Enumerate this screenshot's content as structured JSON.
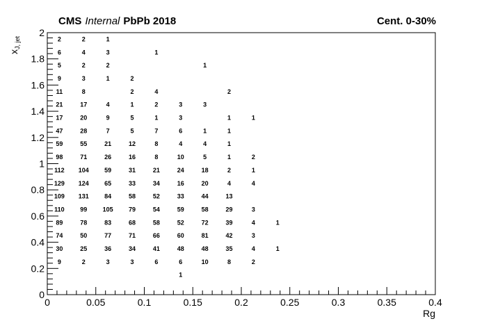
{
  "header": {
    "experiment": "CMS",
    "status": "Internal",
    "dataset": "PbPb 2018",
    "centrality": "Cent. 0-30%"
  },
  "chart_data": {
    "type": "table",
    "xlabel": "Rg",
    "ylabel": "x_{J, jet}",
    "ylabel_main": "x",
    "ylabel_sub": "J, jet",
    "xlim": [
      0,
      0.4
    ],
    "ylim": [
      0,
      2
    ],
    "x_ticks": [
      "0",
      "0.05",
      "0.1",
      "0.15",
      "0.2",
      "0.25",
      "0.3",
      "0.35",
      "0.4"
    ],
    "y_ticks": [
      "0",
      "0.2",
      "0.4",
      "0.6",
      "0.8",
      "1",
      "1.2",
      "1.4",
      "1.6",
      "1.8",
      "2"
    ],
    "grid": false,
    "cells": [
      {
        "x": 0.0125,
        "y": 1.95,
        "v": 2
      },
      {
        "x": 0.0375,
        "y": 1.95,
        "v": 2
      },
      {
        "x": 0.0625,
        "y": 1.95,
        "v": 1
      },
      {
        "x": 0.0125,
        "y": 1.85,
        "v": 6
      },
      {
        "x": 0.0375,
        "y": 1.85,
        "v": 4
      },
      {
        "x": 0.0625,
        "y": 1.85,
        "v": 3
      },
      {
        "x": 0.1125,
        "y": 1.85,
        "v": 1
      },
      {
        "x": 0.0125,
        "y": 1.75,
        "v": 5
      },
      {
        "x": 0.0375,
        "y": 1.75,
        "v": 2
      },
      {
        "x": 0.0625,
        "y": 1.75,
        "v": 2
      },
      {
        "x": 0.1625,
        "y": 1.75,
        "v": 1
      },
      {
        "x": 0.0125,
        "y": 1.65,
        "v": 9
      },
      {
        "x": 0.0375,
        "y": 1.65,
        "v": 3
      },
      {
        "x": 0.0625,
        "y": 1.65,
        "v": 1
      },
      {
        "x": 0.0875,
        "y": 1.65,
        "v": 2
      },
      {
        "x": 0.0125,
        "y": 1.55,
        "v": 11
      },
      {
        "x": 0.0375,
        "y": 1.55,
        "v": 8
      },
      {
        "x": 0.0875,
        "y": 1.55,
        "v": 2
      },
      {
        "x": 0.1125,
        "y": 1.55,
        "v": 4
      },
      {
        "x": 0.1875,
        "y": 1.55,
        "v": 2
      },
      {
        "x": 0.0125,
        "y": 1.45,
        "v": 21
      },
      {
        "x": 0.0375,
        "y": 1.45,
        "v": 17
      },
      {
        "x": 0.0625,
        "y": 1.45,
        "v": 4
      },
      {
        "x": 0.0875,
        "y": 1.45,
        "v": 1
      },
      {
        "x": 0.1125,
        "y": 1.45,
        "v": 2
      },
      {
        "x": 0.1375,
        "y": 1.45,
        "v": 3
      },
      {
        "x": 0.1625,
        "y": 1.45,
        "v": 3
      },
      {
        "x": 0.0125,
        "y": 1.35,
        "v": 17
      },
      {
        "x": 0.0375,
        "y": 1.35,
        "v": 20
      },
      {
        "x": 0.0625,
        "y": 1.35,
        "v": 9
      },
      {
        "x": 0.0875,
        "y": 1.35,
        "v": 5
      },
      {
        "x": 0.1125,
        "y": 1.35,
        "v": 1
      },
      {
        "x": 0.1375,
        "y": 1.35,
        "v": 3
      },
      {
        "x": 0.1875,
        "y": 1.35,
        "v": 1
      },
      {
        "x": 0.2125,
        "y": 1.35,
        "v": 1
      },
      {
        "x": 0.0125,
        "y": 1.25,
        "v": 47
      },
      {
        "x": 0.0375,
        "y": 1.25,
        "v": 28
      },
      {
        "x": 0.0625,
        "y": 1.25,
        "v": 7
      },
      {
        "x": 0.0875,
        "y": 1.25,
        "v": 5
      },
      {
        "x": 0.1125,
        "y": 1.25,
        "v": 7
      },
      {
        "x": 0.1375,
        "y": 1.25,
        "v": 6
      },
      {
        "x": 0.1625,
        "y": 1.25,
        "v": 1
      },
      {
        "x": 0.1875,
        "y": 1.25,
        "v": 1
      },
      {
        "x": 0.0125,
        "y": 1.15,
        "v": 59
      },
      {
        "x": 0.0375,
        "y": 1.15,
        "v": 55
      },
      {
        "x": 0.0625,
        "y": 1.15,
        "v": 21
      },
      {
        "x": 0.0875,
        "y": 1.15,
        "v": 12
      },
      {
        "x": 0.1125,
        "y": 1.15,
        "v": 8
      },
      {
        "x": 0.1375,
        "y": 1.15,
        "v": 4
      },
      {
        "x": 0.1625,
        "y": 1.15,
        "v": 4
      },
      {
        "x": 0.1875,
        "y": 1.15,
        "v": 1
      },
      {
        "x": 0.0125,
        "y": 1.05,
        "v": 98
      },
      {
        "x": 0.0375,
        "y": 1.05,
        "v": 71
      },
      {
        "x": 0.0625,
        "y": 1.05,
        "v": 26
      },
      {
        "x": 0.0875,
        "y": 1.05,
        "v": 16
      },
      {
        "x": 0.1125,
        "y": 1.05,
        "v": 8
      },
      {
        "x": 0.1375,
        "y": 1.05,
        "v": 10
      },
      {
        "x": 0.1625,
        "y": 1.05,
        "v": 5
      },
      {
        "x": 0.1875,
        "y": 1.05,
        "v": 1
      },
      {
        "x": 0.2125,
        "y": 1.05,
        "v": 2
      },
      {
        "x": 0.0125,
        "y": 0.95,
        "v": 112
      },
      {
        "x": 0.0375,
        "y": 0.95,
        "v": 104
      },
      {
        "x": 0.0625,
        "y": 0.95,
        "v": 59
      },
      {
        "x": 0.0875,
        "y": 0.95,
        "v": 31
      },
      {
        "x": 0.1125,
        "y": 0.95,
        "v": 21
      },
      {
        "x": 0.1375,
        "y": 0.95,
        "v": 24
      },
      {
        "x": 0.1625,
        "y": 0.95,
        "v": 18
      },
      {
        "x": 0.1875,
        "y": 0.95,
        "v": 2
      },
      {
        "x": 0.2125,
        "y": 0.95,
        "v": 1
      },
      {
        "x": 0.0125,
        "y": 0.85,
        "v": 129
      },
      {
        "x": 0.0375,
        "y": 0.85,
        "v": 124
      },
      {
        "x": 0.0625,
        "y": 0.85,
        "v": 65
      },
      {
        "x": 0.0875,
        "y": 0.85,
        "v": 33
      },
      {
        "x": 0.1125,
        "y": 0.85,
        "v": 34
      },
      {
        "x": 0.1375,
        "y": 0.85,
        "v": 16
      },
      {
        "x": 0.1625,
        "y": 0.85,
        "v": 20
      },
      {
        "x": 0.1875,
        "y": 0.85,
        "v": 4
      },
      {
        "x": 0.2125,
        "y": 0.85,
        "v": 4
      },
      {
        "x": 0.0125,
        "y": 0.75,
        "v": 109
      },
      {
        "x": 0.0375,
        "y": 0.75,
        "v": 131
      },
      {
        "x": 0.0625,
        "y": 0.75,
        "v": 84
      },
      {
        "x": 0.0875,
        "y": 0.75,
        "v": 58
      },
      {
        "x": 0.1125,
        "y": 0.75,
        "v": 52
      },
      {
        "x": 0.1375,
        "y": 0.75,
        "v": 33
      },
      {
        "x": 0.1625,
        "y": 0.75,
        "v": 44
      },
      {
        "x": 0.1875,
        "y": 0.75,
        "v": 13
      },
      {
        "x": 0.0125,
        "y": 0.65,
        "v": 110
      },
      {
        "x": 0.0375,
        "y": 0.65,
        "v": 99
      },
      {
        "x": 0.0625,
        "y": 0.65,
        "v": 105
      },
      {
        "x": 0.0875,
        "y": 0.65,
        "v": 79
      },
      {
        "x": 0.1125,
        "y": 0.65,
        "v": 54
      },
      {
        "x": 0.1375,
        "y": 0.65,
        "v": 59
      },
      {
        "x": 0.1625,
        "y": 0.65,
        "v": 58
      },
      {
        "x": 0.1875,
        "y": 0.65,
        "v": 29
      },
      {
        "x": 0.2125,
        "y": 0.65,
        "v": 3
      },
      {
        "x": 0.0125,
        "y": 0.55,
        "v": 89
      },
      {
        "x": 0.0375,
        "y": 0.55,
        "v": 78
      },
      {
        "x": 0.0625,
        "y": 0.55,
        "v": 83
      },
      {
        "x": 0.0875,
        "y": 0.55,
        "v": 68
      },
      {
        "x": 0.1125,
        "y": 0.55,
        "v": 58
      },
      {
        "x": 0.1375,
        "y": 0.55,
        "v": 52
      },
      {
        "x": 0.1625,
        "y": 0.55,
        "v": 72
      },
      {
        "x": 0.1875,
        "y": 0.55,
        "v": 39
      },
      {
        "x": 0.2125,
        "y": 0.55,
        "v": 4
      },
      {
        "x": 0.2375,
        "y": 0.55,
        "v": 1
      },
      {
        "x": 0.0125,
        "y": 0.45,
        "v": 74
      },
      {
        "x": 0.0375,
        "y": 0.45,
        "v": 50
      },
      {
        "x": 0.0625,
        "y": 0.45,
        "v": 77
      },
      {
        "x": 0.0875,
        "y": 0.45,
        "v": 71
      },
      {
        "x": 0.1125,
        "y": 0.45,
        "v": 66
      },
      {
        "x": 0.1375,
        "y": 0.45,
        "v": 60
      },
      {
        "x": 0.1625,
        "y": 0.45,
        "v": 81
      },
      {
        "x": 0.1875,
        "y": 0.45,
        "v": 42
      },
      {
        "x": 0.2125,
        "y": 0.45,
        "v": 3
      },
      {
        "x": 0.0125,
        "y": 0.35,
        "v": 30
      },
      {
        "x": 0.0375,
        "y": 0.35,
        "v": 25
      },
      {
        "x": 0.0625,
        "y": 0.35,
        "v": 36
      },
      {
        "x": 0.0875,
        "y": 0.35,
        "v": 34
      },
      {
        "x": 0.1125,
        "y": 0.35,
        "v": 41
      },
      {
        "x": 0.1375,
        "y": 0.35,
        "v": 48
      },
      {
        "x": 0.1625,
        "y": 0.35,
        "v": 48
      },
      {
        "x": 0.1875,
        "y": 0.35,
        "v": 35
      },
      {
        "x": 0.2125,
        "y": 0.35,
        "v": 4
      },
      {
        "x": 0.2375,
        "y": 0.35,
        "v": 1
      },
      {
        "x": 0.0125,
        "y": 0.25,
        "v": 9
      },
      {
        "x": 0.0375,
        "y": 0.25,
        "v": 2
      },
      {
        "x": 0.0625,
        "y": 0.25,
        "v": 3
      },
      {
        "x": 0.0875,
        "y": 0.25,
        "v": 3
      },
      {
        "x": 0.1125,
        "y": 0.25,
        "v": 6
      },
      {
        "x": 0.1375,
        "y": 0.25,
        "v": 6
      },
      {
        "x": 0.1625,
        "y": 0.25,
        "v": 10
      },
      {
        "x": 0.1875,
        "y": 0.25,
        "v": 8
      },
      {
        "x": 0.2125,
        "y": 0.25,
        "v": 2
      },
      {
        "x": 0.1375,
        "y": 0.15,
        "v": 1
      }
    ]
  }
}
